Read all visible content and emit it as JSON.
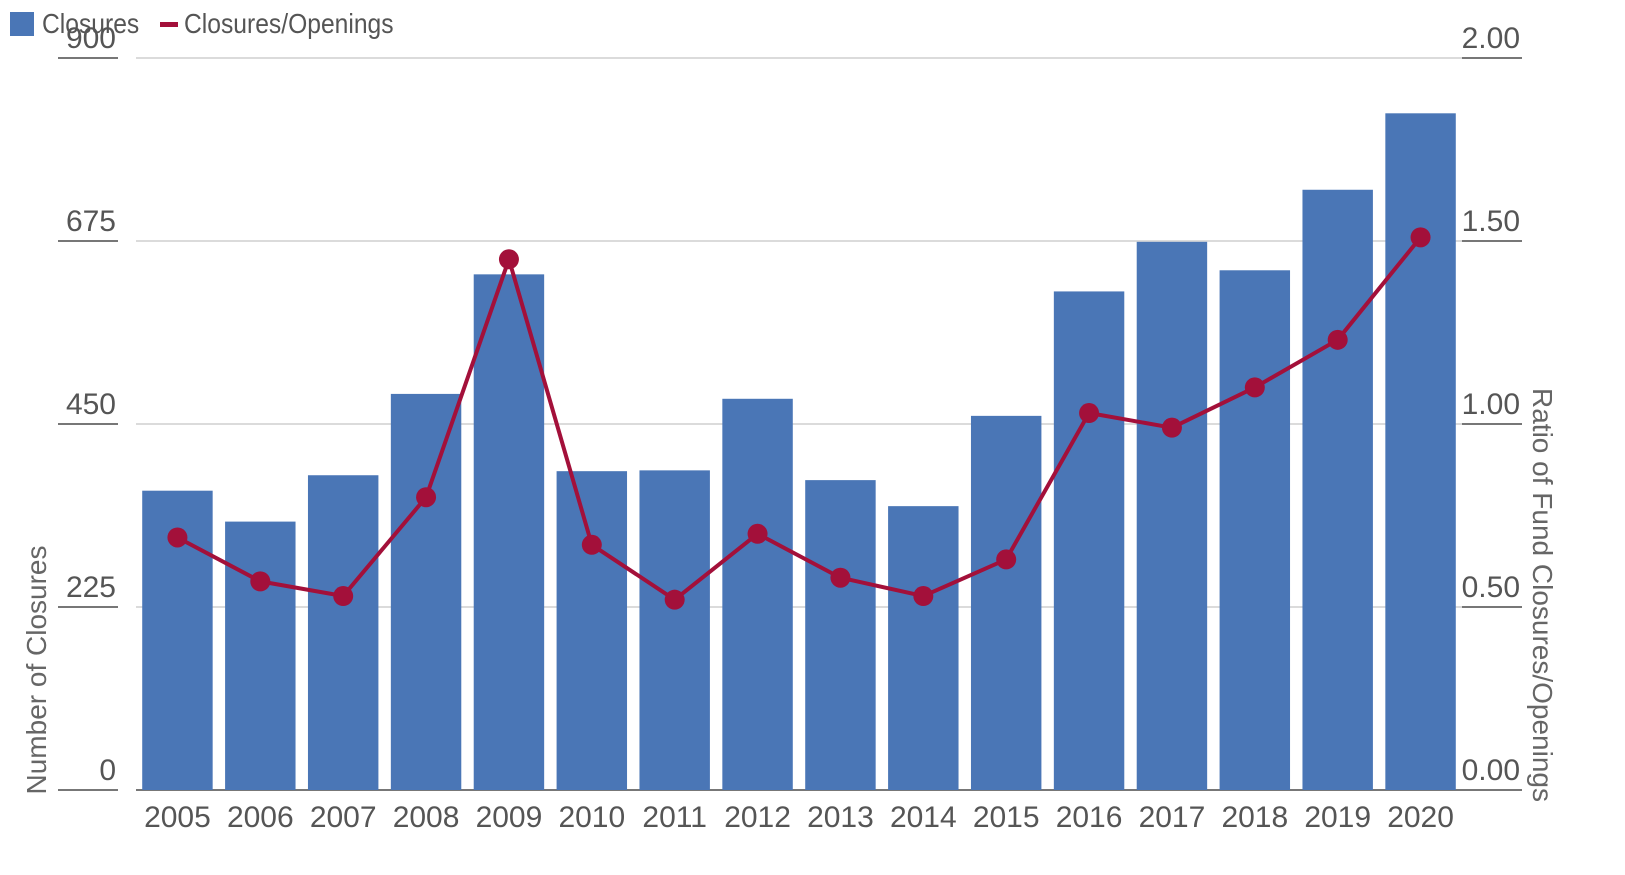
{
  "legend": {
    "closures_label": "Closures",
    "ratio_label": "Closures/Openings"
  },
  "colors": {
    "bar": "#4a76b6",
    "line": "#a3103a",
    "grid": "#cfcfcf",
    "axis": "#777777"
  },
  "chart_data": {
    "type": "bar",
    "categories": [
      "2005",
      "2006",
      "2007",
      "2008",
      "2009",
      "2010",
      "2011",
      "2012",
      "2013",
      "2014",
      "2015",
      "2016",
      "2017",
      "2018",
      "2019",
      "2020"
    ],
    "series": [
      {
        "name": "Closures",
        "type": "bar",
        "axis": "left",
        "values": [
          368,
          330,
          387,
          487,
          634,
          392,
          393,
          481,
          381,
          349,
          460,
          613,
          674,
          639,
          738,
          832
        ]
      },
      {
        "name": "Closures/Openings",
        "type": "line",
        "axis": "right",
        "values": [
          0.69,
          0.57,
          0.53,
          0.8,
          1.45,
          0.67,
          0.52,
          0.7,
          0.58,
          0.53,
          0.63,
          1.03,
          0.99,
          1.1,
          1.23,
          1.51
        ]
      }
    ],
    "ylabel": "Number of Closures",
    "y2label": "Ratio of Fund Closures/Openings",
    "ylim": [
      0,
      900
    ],
    "y2lim": [
      0,
      2.0
    ],
    "yticks": [
      "0",
      "225",
      "450",
      "675",
      "900"
    ],
    "y2ticks": [
      "0.00",
      "0.50",
      "1.00",
      "1.50",
      "2.00"
    ],
    "grid": true,
    "legend_position": "top-left"
  }
}
